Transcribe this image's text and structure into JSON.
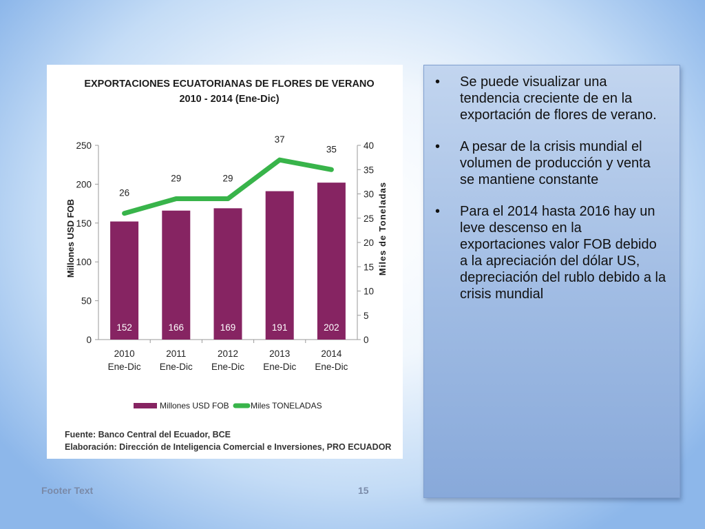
{
  "chart_data": {
    "type": "bar",
    "title": "EXPORTACIONES ECUATORIANAS DE FLORES DE VERANO",
    "subtitle": "2010 - 2014 (Ene-Dic)",
    "categories": [
      {
        "year": "2010",
        "period": "Ene-Dic"
      },
      {
        "year": "2011",
        "period": "Ene-Dic"
      },
      {
        "year": "2012",
        "period": "Ene-Dic"
      },
      {
        "year": "2013",
        "period": "Ene-Dic"
      },
      {
        "year": "2014",
        "period": "Ene-Dic"
      }
    ],
    "series": [
      {
        "name": "Millones USD FOB",
        "kind": "bar",
        "axis": "left",
        "color": "#862462",
        "values": [
          152,
          166,
          169,
          191,
          202
        ]
      },
      {
        "name": "Miles TONELADAS",
        "kind": "line",
        "axis": "right",
        "color": "#38b44a",
        "values": [
          26,
          29,
          29,
          37,
          35
        ]
      }
    ],
    "y_left": {
      "label": "Millones USD FOB",
      "min": 0,
      "max": 250,
      "ticks": [
        0,
        50,
        100,
        150,
        200,
        250
      ]
    },
    "y_right": {
      "label": "Miles de Toneladas",
      "min": 0,
      "max": 40,
      "ticks": [
        0,
        5,
        10,
        15,
        20,
        25,
        30,
        35,
        40
      ]
    },
    "grid": false,
    "legend": "bottom",
    "source_lines": [
      "Fuente: Banco Central del Ecuador, BCE",
      "Elaboración: Dirección de Inteligencia Comercial e Inversiones, PRO ECUADOR"
    ]
  },
  "panel": {
    "bullet_char": "•",
    "bullets": [
      "Se puede visualizar una tendencia creciente de en la exportación de flores de verano.",
      "A pesar de la crisis mundial el volumen de producción y venta se mantiene constante",
      "Para el 2014 hasta 2016 hay un leve descenso  en la exportaciones valor FOB debido a la apreciación del dólar US, depreciación del rublo debido a la crisis mundial"
    ]
  },
  "footer": {
    "text": "Footer Text",
    "page": "15"
  }
}
